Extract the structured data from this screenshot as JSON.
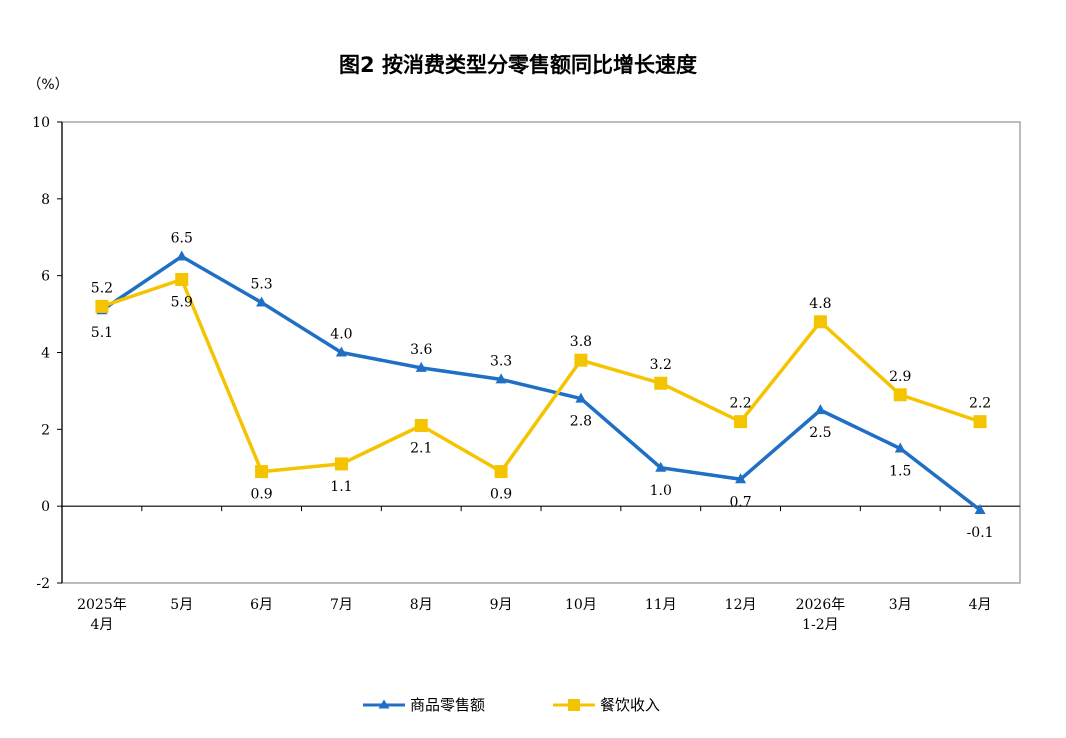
{
  "chart_data": {
    "type": "line",
    "title": "图2 按消费类型分零售额同比增长速度",
    "y_unit": "（%）",
    "ylim": [
      -2,
      10
    ],
    "y_ticks": [
      "-2",
      "0",
      "2",
      "4",
      "6",
      "8",
      "10"
    ],
    "categories": [
      [
        "2025年",
        "4月"
      ],
      [
        "5月"
      ],
      [
        "6月"
      ],
      [
        "7月"
      ],
      [
        "8月"
      ],
      [
        "9月"
      ],
      [
        "10月"
      ],
      [
        "11月"
      ],
      [
        "12月"
      ],
      [
        "2026年",
        "1-2月"
      ],
      [
        "3月"
      ],
      [
        "4月"
      ]
    ],
    "grid": false,
    "legend_position": "bottom-center",
    "series": [
      {
        "name": "商品零售额",
        "color": "#1f6fc5",
        "marker": "triangle",
        "values": [
          5.1,
          6.5,
          5.3,
          4.0,
          3.6,
          3.3,
          2.8,
          1.0,
          0.7,
          2.5,
          1.5,
          -0.1
        ],
        "labels": [
          "5.1",
          "6.5",
          "5.3",
          "4.0",
          "3.6",
          "3.3",
          "2.8",
          "1.0",
          "0.7",
          "2.5",
          "1.5",
          "-0.1"
        ]
      },
      {
        "name": "餐饮收入",
        "color": "#f5c400",
        "marker": "square",
        "values": [
          5.2,
          5.9,
          0.9,
          1.1,
          2.1,
          0.9,
          3.8,
          3.2,
          2.2,
          4.8,
          2.9,
          2.2
        ],
        "labels": [
          "5.2",
          "5.9",
          "0.9",
          "1.1",
          "2.1",
          "0.9",
          "3.8",
          "3.2",
          "2.2",
          "4.8",
          "2.9",
          "2.2"
        ]
      }
    ]
  }
}
